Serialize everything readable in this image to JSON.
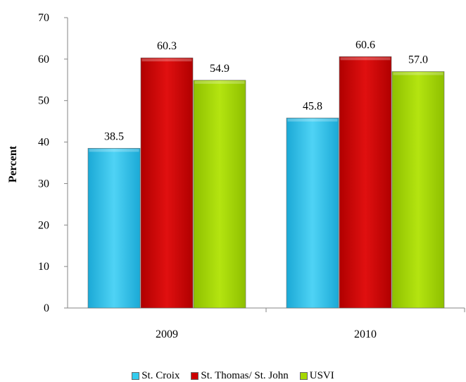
{
  "chart_data": {
    "type": "bar",
    "categories": [
      "2009",
      "2010"
    ],
    "series": [
      {
        "name": "St. Croix",
        "values": [
          38.5,
          45.8
        ],
        "value_labels": [
          "38.5",
          "45.8"
        ],
        "color": "#33ccee"
      },
      {
        "name": "St. Thomas/ St. John",
        "values": [
          60.3,
          60.6
        ],
        "value_labels": [
          "60.3",
          "60.6"
        ],
        "color": "#cc0000"
      },
      {
        "name": "USVI",
        "values": [
          54.9,
          57.0
        ],
        "value_labels": [
          "54.9",
          "57.0"
        ],
        "color": "#a6d800"
      }
    ],
    "ylabel": "Percent",
    "ylim": [
      0,
      70
    ],
    "yticks": [
      "0",
      "10",
      "20",
      "30",
      "40",
      "50",
      "60",
      "70"
    ],
    "grid": false,
    "legend_position": "bottom"
  }
}
